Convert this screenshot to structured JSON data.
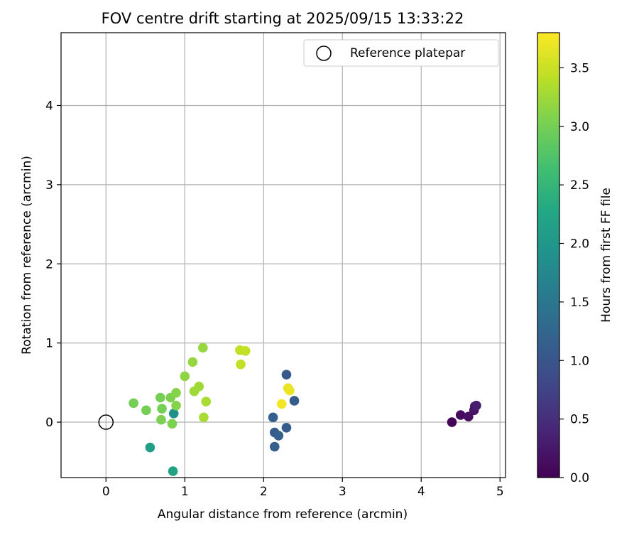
{
  "chart_data": {
    "type": "scatter",
    "title": "FOV centre drift starting at 2025/09/15 13:33:22",
    "xlabel": "Angular distance from reference (arcmin)",
    "ylabel": "Rotation from reference (arcmin)",
    "xlim": [
      -0.57,
      5.07
    ],
    "ylim": [
      -0.7,
      4.92
    ],
    "xticks": [
      0,
      1,
      2,
      3,
      4,
      5
    ],
    "yticks": [
      0,
      1,
      2,
      3,
      4
    ],
    "grid": true,
    "legend": {
      "placement": "top-right",
      "entries": [
        "Reference platepar"
      ]
    },
    "reference_point": {
      "x": 0,
      "y": 0
    },
    "colorbar": {
      "label": "Hours from first FF file",
      "colormap": "viridis",
      "range": [
        0,
        3.8
      ],
      "ticks": [
        0.0,
        0.5,
        1.0,
        1.5,
        2.0,
        2.5,
        3.0,
        3.5
      ],
      "tick_labels": [
        "0.0",
        "0.5",
        "1.0",
        "1.5",
        "2.0",
        "2.5",
        "3.0",
        "3.5"
      ]
    },
    "points": [
      {
        "x": 4.39,
        "y": 0.0,
        "hours": 0.05
      },
      {
        "x": 4.5,
        "y": 0.09,
        "hours": 0.1
      },
      {
        "x": 4.6,
        "y": 0.07,
        "hours": 0.15
      },
      {
        "x": 4.67,
        "y": 0.15,
        "hours": 0.2
      },
      {
        "x": 4.68,
        "y": 0.2,
        "hours": 0.25
      },
      {
        "x": 4.7,
        "y": 0.21,
        "hours": 0.3
      },
      {
        "x": 2.29,
        "y": 0.6,
        "hours": 1.05
      },
      {
        "x": 2.39,
        "y": 0.27,
        "hours": 1.1
      },
      {
        "x": 2.12,
        "y": 0.06,
        "hours": 1.15
      },
      {
        "x": 2.29,
        "y": -0.07,
        "hours": 1.1
      },
      {
        "x": 2.14,
        "y": -0.13,
        "hours": 1.1
      },
      {
        "x": 2.19,
        "y": -0.17,
        "hours": 1.15
      },
      {
        "x": 2.14,
        "y": -0.31,
        "hours": 1.15
      },
      {
        "x": 0.86,
        "y": 0.11,
        "hours": 1.9
      },
      {
        "x": 0.56,
        "y": -0.32,
        "hours": 2.1
      },
      {
        "x": 0.85,
        "y": -0.62,
        "hours": 2.2
      },
      {
        "x": 0.35,
        "y": 0.24,
        "hours": 3.0
      },
      {
        "x": 0.51,
        "y": 0.15,
        "hours": 3.0
      },
      {
        "x": 0.69,
        "y": 0.31,
        "hours": 3.0
      },
      {
        "x": 0.71,
        "y": 0.17,
        "hours": 3.0
      },
      {
        "x": 0.7,
        "y": 0.03,
        "hours": 3.05
      },
      {
        "x": 0.82,
        "y": 0.31,
        "hours": 3.05
      },
      {
        "x": 0.84,
        "y": -0.02,
        "hours": 3.05
      },
      {
        "x": 0.89,
        "y": 0.37,
        "hours": 3.1
      },
      {
        "x": 0.89,
        "y": 0.21,
        "hours": 3.1
      },
      {
        "x": 1.0,
        "y": 0.58,
        "hours": 3.15
      },
      {
        "x": 1.1,
        "y": 0.76,
        "hours": 3.2
      },
      {
        "x": 1.12,
        "y": 0.39,
        "hours": 3.25
      },
      {
        "x": 1.18,
        "y": 0.45,
        "hours": 3.25
      },
      {
        "x": 1.23,
        "y": 0.94,
        "hours": 3.2
      },
      {
        "x": 1.27,
        "y": 0.26,
        "hours": 3.3
      },
      {
        "x": 1.24,
        "y": 0.06,
        "hours": 3.3
      },
      {
        "x": 1.7,
        "y": 0.91,
        "hours": 3.45
      },
      {
        "x": 1.77,
        "y": 0.9,
        "hours": 3.45
      },
      {
        "x": 1.71,
        "y": 0.73,
        "hours": 3.45
      },
      {
        "x": 2.31,
        "y": 0.43,
        "hours": 3.65
      },
      {
        "x": 2.33,
        "y": 0.4,
        "hours": 3.7
      },
      {
        "x": 2.23,
        "y": 0.23,
        "hours": 3.75
      }
    ]
  }
}
